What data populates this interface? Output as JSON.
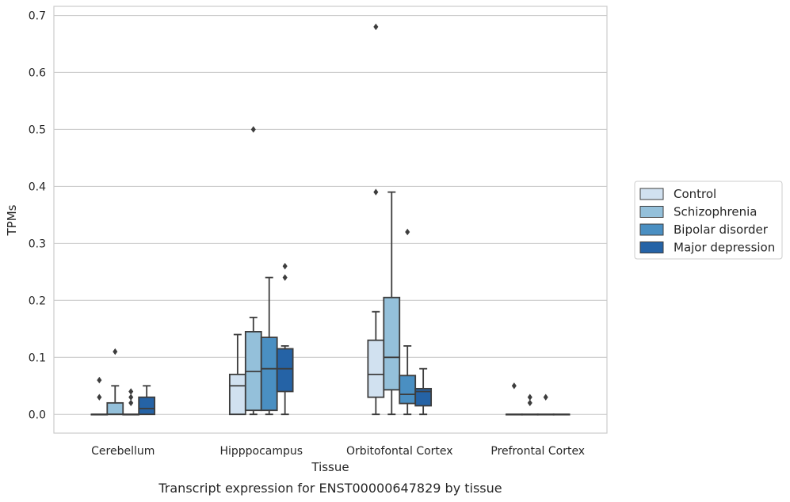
{
  "chart_data": {
    "type": "box",
    "title": "",
    "caption": "Transcript expression for ENST00000647829 by tissue",
    "xlabel": "Tissue",
    "ylabel": "TPMs",
    "ylim": [
      -0.033,
      0.716
    ],
    "yticks": [
      0.0,
      0.1,
      0.2,
      0.3,
      0.4,
      0.5,
      0.6,
      0.7
    ],
    "ytick_labels": [
      "0.0",
      "0.1",
      "0.2",
      "0.3",
      "0.4",
      "0.5",
      "0.6",
      "0.7"
    ],
    "grid": "horizontal",
    "legend_position": "right",
    "categories": [
      "Cerebellum",
      "Hipppocampus",
      "Orbitofontal Cortex",
      "Prefrontal Cortex"
    ],
    "series": [
      {
        "name": "Control",
        "color": "#d1e1f0",
        "boxes": [
          {
            "q1": 0.0,
            "median": 0.0,
            "q3": 0.0,
            "whisker_low": 0.0,
            "whisker_high": 0.0,
            "outliers": [
              0.03,
              0.06
            ]
          },
          {
            "q1": 0.0,
            "median": 0.05,
            "q3": 0.07,
            "whisker_low": 0.0,
            "whisker_high": 0.14,
            "outliers": []
          },
          {
            "q1": 0.03,
            "median": 0.07,
            "q3": 0.13,
            "whisker_low": 0.0,
            "whisker_high": 0.18,
            "outliers": [
              0.39,
              0.68
            ]
          },
          {
            "q1": 0.0,
            "median": 0.0,
            "q3": 0.0,
            "whisker_low": 0.0,
            "whisker_high": 0.0,
            "outliers": [
              0.05
            ]
          }
        ]
      },
      {
        "name": "Schizophrenia",
        "color": "#94c0da",
        "boxes": [
          {
            "q1": 0.0,
            "median": 0.0,
            "q3": 0.02,
            "whisker_low": 0.0,
            "whisker_high": 0.05,
            "outliers": [
              0.11
            ]
          },
          {
            "q1": 0.007,
            "median": 0.075,
            "q3": 0.145,
            "whisker_low": 0.0,
            "whisker_high": 0.17,
            "outliers": [
              0.5
            ]
          },
          {
            "q1": 0.043,
            "median": 0.1,
            "q3": 0.205,
            "whisker_low": 0.0,
            "whisker_high": 0.39,
            "outliers": []
          },
          {
            "q1": 0.0,
            "median": 0.0,
            "q3": 0.0,
            "whisker_low": 0.0,
            "whisker_high": 0.0,
            "outliers": [
              0.02,
              0.03
            ]
          }
        ]
      },
      {
        "name": "Bipolar disorder",
        "color": "#4a8fc2",
        "boxes": [
          {
            "q1": 0.0,
            "median": 0.0,
            "q3": 0.0,
            "whisker_low": 0.0,
            "whisker_high": 0.0,
            "outliers": [
              0.02,
              0.03,
              0.04
            ]
          },
          {
            "q1": 0.007,
            "median": 0.08,
            "q3": 0.135,
            "whisker_low": 0.0,
            "whisker_high": 0.24,
            "outliers": []
          },
          {
            "q1": 0.019,
            "median": 0.035,
            "q3": 0.068,
            "whisker_low": 0.0,
            "whisker_high": 0.12,
            "outliers": [
              0.32
            ]
          },
          {
            "q1": 0.0,
            "median": 0.0,
            "q3": 0.0,
            "whisker_low": 0.0,
            "whisker_high": 0.0,
            "outliers": [
              0.03
            ]
          }
        ]
      },
      {
        "name": "Major depression",
        "color": "#2563a6",
        "boxes": [
          {
            "q1": 0.0,
            "median": 0.01,
            "q3": 0.03,
            "whisker_low": 0.0,
            "whisker_high": 0.05,
            "outliers": []
          },
          {
            "q1": 0.04,
            "median": 0.08,
            "q3": 0.115,
            "whisker_low": 0.0,
            "whisker_high": 0.12,
            "outliers": [
              0.24,
              0.26
            ]
          },
          {
            "q1": 0.015,
            "median": 0.04,
            "q3": 0.045,
            "whisker_low": 0.0,
            "whisker_high": 0.08,
            "outliers": []
          },
          {
            "q1": 0.0,
            "median": 0.0,
            "q3": 0.0,
            "whisker_low": 0.0,
            "whisker_high": 0.0,
            "outliers": []
          }
        ]
      }
    ]
  }
}
